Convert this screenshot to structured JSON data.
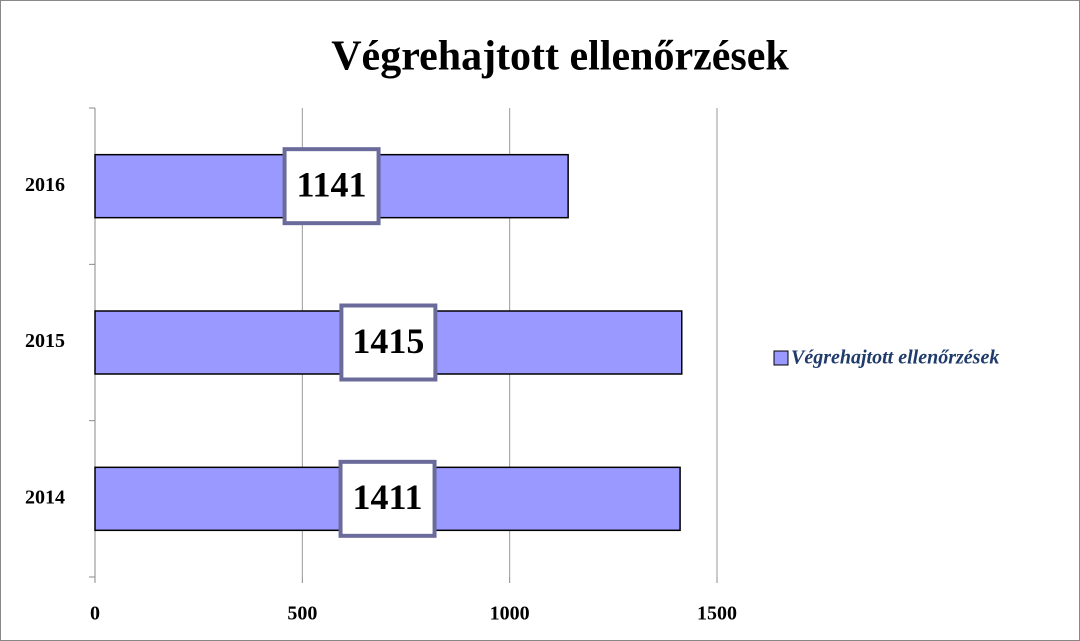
{
  "chart_data": {
    "type": "bar",
    "orientation": "horizontal",
    "title": "Végrehajtott ellenőrzések",
    "categories": [
      "2014",
      "2015",
      "2016"
    ],
    "series": [
      {
        "name": "Végrehajtott ellenőrzések",
        "color": "#9999ff",
        "values": [
          1411,
          1415,
          1141
        ]
      }
    ],
    "xlim": [
      0,
      1500
    ],
    "xticks": [
      0,
      500,
      1000,
      1500
    ],
    "grid": true,
    "legend": "right",
    "data_labels": true
  }
}
